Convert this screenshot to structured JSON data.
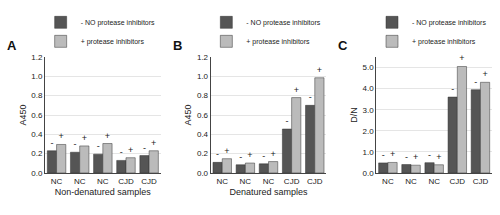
{
  "chart_data": [
    {
      "type": "bar",
      "title": "A",
      "ylabel": "A450",
      "xlabel": "Non-denatured samples",
      "categories": [
        "NC",
        "NC",
        "NC",
        "CJD",
        "CJD"
      ],
      "series": [
        {
          "name": "- NO protease inhibitors",
          "color": "#555555",
          "values": [
            0.23,
            0.215,
            0.195,
            0.13,
            0.18
          ],
          "annotations": [
            "-",
            "-",
            "-",
            "-",
            "-"
          ]
        },
        {
          "name": "+ protease inhibitors",
          "color": "#bbbbbb",
          "values": [
            0.295,
            0.28,
            0.305,
            0.158,
            0.23
          ],
          "annotations": [
            "+",
            "+",
            "+",
            "+",
            "+"
          ]
        }
      ],
      "ylim": [
        0.0,
        1.2
      ],
      "yticks": [
        {
          "value": 0.0,
          "label": "0.0"
        },
        0.2,
        0.4,
        0.6,
        0.8,
        {
          "value": 1.0,
          "label": "1.0"
        },
        1.2
      ],
      "grid": true,
      "legend": "above"
    },
    {
      "type": "bar",
      "title": "B",
      "ylabel": "A450",
      "xlabel": "Denatured samples",
      "categories": [
        "NC",
        "NC",
        "NC",
        "CJD",
        "CJD"
      ],
      "series": [
        {
          "name": "- NO protease inhibitors",
          "color": "#555555",
          "values": [
            0.11,
            0.085,
            0.095,
            0.455,
            0.7
          ],
          "annotations": [
            "-",
            "-",
            "-",
            "-",
            "-"
          ]
        },
        {
          "name": "+ protease inhibitors",
          "color": "#bbbbbb",
          "values": [
            0.148,
            0.103,
            0.118,
            0.78,
            0.985
          ],
          "annotations": [
            "+",
            "+",
            "+",
            "+",
            "+"
          ]
        }
      ],
      "ylim": [
        0.0,
        1.2
      ],
      "yticks": [
        {
          "value": 0.0,
          "label": "0.0"
        },
        0.2,
        0.4,
        0.6,
        0.8,
        {
          "value": 1.0,
          "label": "1.0"
        },
        1.2
      ],
      "grid": true,
      "legend": "above"
    },
    {
      "type": "bar",
      "title": "C",
      "ylabel": "D/N",
      "categories": [
        "NC",
        "NC",
        "NC",
        "CJD",
        "CJD"
      ],
      "series": [
        {
          "name": "- NO protease inhibitors",
          "color": "#555555",
          "values": [
            0.48,
            0.4,
            0.49,
            3.6,
            3.95
          ],
          "annotations": [
            "-",
            "-",
            "-",
            "-",
            "-"
          ]
        },
        {
          "name": "+ protease inhibitors",
          "color": "#bbbbbb",
          "values": [
            0.5,
            0.37,
            0.39,
            5.05,
            4.3
          ],
          "annotations": [
            "+",
            "+",
            "+",
            "+",
            "+"
          ]
        }
      ],
      "ylim": [
        0.0,
        5.5
      ],
      "yticks": [
        {
          "value": 0.0,
          "label": "0.0"
        },
        {
          "value": 1.0,
          "label": "1.0"
        },
        {
          "value": 2.0,
          "label": "2.0"
        },
        {
          "value": 3.0,
          "label": "3.0"
        },
        {
          "value": 4.0,
          "label": "4.0"
        },
        {
          "value": 5.0,
          "label": "5.0"
        }
      ],
      "grid": true,
      "legend": "above"
    }
  ]
}
